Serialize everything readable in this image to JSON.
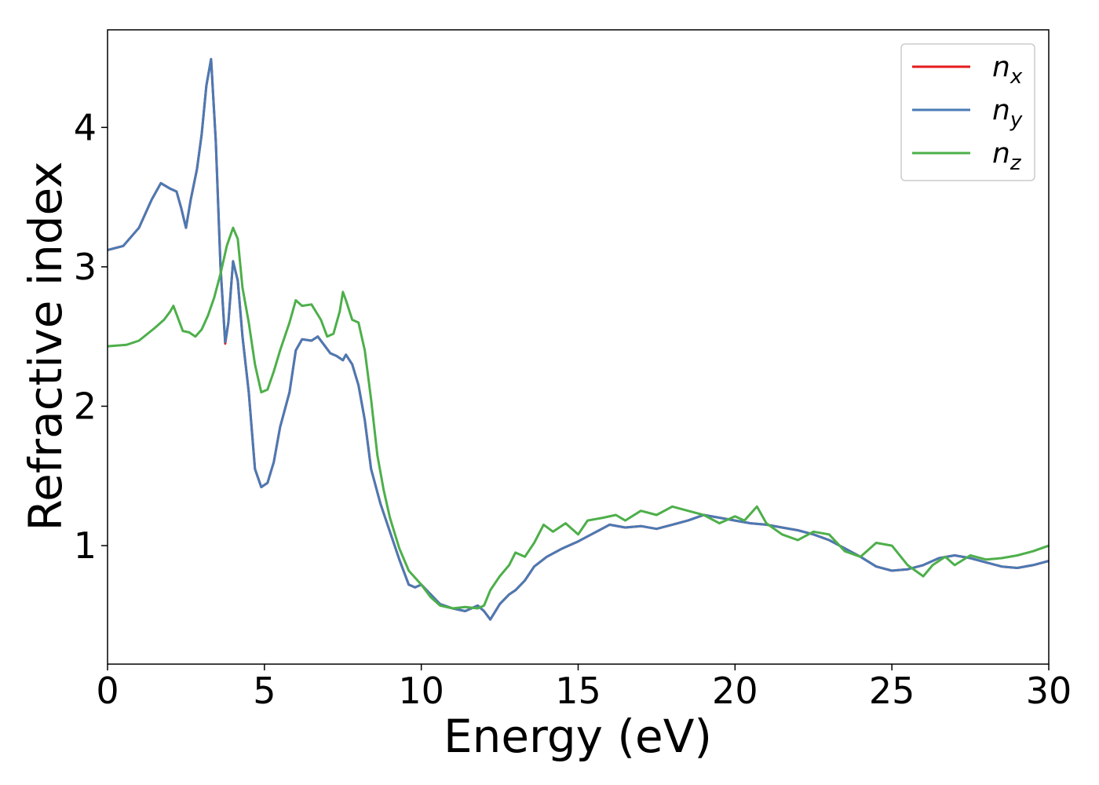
{
  "chart_data": {
    "type": "line",
    "title": "",
    "xlabel": "Energy (eV)",
    "ylabel": "Refractive index",
    "xlim": [
      0,
      30
    ],
    "ylim": [
      0.15,
      4.7
    ],
    "xticks": [
      0,
      5,
      10,
      15,
      20,
      25,
      30
    ],
    "yticks": [
      1,
      2,
      3,
      4
    ],
    "grid": false,
    "legend_position": "top-right",
    "series": [
      {
        "name": "n_x",
        "label_main": "n",
        "label_sub": "x",
        "color": "#e41a1c",
        "points": [
          [
            0,
            3.12
          ],
          [
            0.5,
            3.15
          ],
          [
            1.0,
            3.28
          ],
          [
            1.4,
            3.48
          ],
          [
            1.7,
            3.6
          ],
          [
            2.0,
            3.56
          ],
          [
            2.2,
            3.54
          ],
          [
            2.35,
            3.42
          ],
          [
            2.5,
            3.28
          ],
          [
            2.65,
            3.48
          ],
          [
            2.85,
            3.7
          ],
          [
            3.0,
            3.95
          ],
          [
            3.15,
            4.3
          ],
          [
            3.3,
            4.49
          ],
          [
            3.45,
            3.9
          ],
          [
            3.6,
            3.0
          ],
          [
            3.75,
            2.45
          ],
          [
            3.85,
            2.6
          ],
          [
            4.0,
            3.04
          ],
          [
            4.15,
            2.9
          ],
          [
            4.3,
            2.5
          ],
          [
            4.5,
            2.1
          ],
          [
            4.7,
            1.55
          ],
          [
            4.9,
            1.42
          ],
          [
            5.1,
            1.45
          ],
          [
            5.3,
            1.6
          ],
          [
            5.5,
            1.85
          ],
          [
            5.8,
            2.1
          ],
          [
            6.0,
            2.4
          ],
          [
            6.2,
            2.48
          ],
          [
            6.5,
            2.47
          ],
          [
            6.7,
            2.5
          ],
          [
            6.9,
            2.44
          ],
          [
            7.1,
            2.38
          ],
          [
            7.3,
            2.36
          ],
          [
            7.5,
            2.33
          ],
          [
            7.6,
            2.37
          ],
          [
            7.8,
            2.3
          ],
          [
            8.0,
            2.15
          ],
          [
            8.2,
            1.9
          ],
          [
            8.4,
            1.55
          ],
          [
            8.7,
            1.3
          ],
          [
            9.0,
            1.1
          ],
          [
            9.3,
            0.9
          ],
          [
            9.6,
            0.72
          ],
          [
            9.8,
            0.7
          ],
          [
            10.0,
            0.72
          ],
          [
            10.3,
            0.65
          ],
          [
            10.6,
            0.58
          ],
          [
            11.0,
            0.55
          ],
          [
            11.4,
            0.53
          ],
          [
            11.8,
            0.57
          ],
          [
            12.0,
            0.53
          ],
          [
            12.2,
            0.47
          ],
          [
            12.5,
            0.58
          ],
          [
            12.8,
            0.65
          ],
          [
            13.0,
            0.68
          ],
          [
            13.3,
            0.75
          ],
          [
            13.6,
            0.85
          ],
          [
            14.0,
            0.92
          ],
          [
            14.5,
            0.98
          ],
          [
            15.0,
            1.03
          ],
          [
            15.5,
            1.09
          ],
          [
            16.0,
            1.15
          ],
          [
            16.5,
            1.13
          ],
          [
            17.0,
            1.14
          ],
          [
            17.5,
            1.12
          ],
          [
            18.0,
            1.15
          ],
          [
            18.5,
            1.18
          ],
          [
            19.0,
            1.22
          ],
          [
            19.5,
            1.2
          ],
          [
            20.0,
            1.18
          ],
          [
            20.5,
            1.16
          ],
          [
            21.0,
            1.15
          ],
          [
            21.5,
            1.13
          ],
          [
            22.0,
            1.11
          ],
          [
            22.5,
            1.08
          ],
          [
            23.0,
            1.04
          ],
          [
            23.5,
            0.98
          ],
          [
            24.0,
            0.92
          ],
          [
            24.5,
            0.85
          ],
          [
            25.0,
            0.82
          ],
          [
            25.5,
            0.83
          ],
          [
            26.0,
            0.86
          ],
          [
            26.5,
            0.91
          ],
          [
            27.0,
            0.93
          ],
          [
            27.5,
            0.91
          ],
          [
            28.0,
            0.88
          ],
          [
            28.5,
            0.85
          ],
          [
            29.0,
            0.84
          ],
          [
            29.5,
            0.86
          ],
          [
            30.0,
            0.89
          ]
        ]
      },
      {
        "name": "n_y",
        "label_main": "n",
        "label_sub": "y",
        "color": "#4a7ab4",
        "points": [
          [
            0,
            3.12
          ],
          [
            0.5,
            3.15
          ],
          [
            1.0,
            3.28
          ],
          [
            1.4,
            3.48
          ],
          [
            1.7,
            3.6
          ],
          [
            2.0,
            3.56
          ],
          [
            2.2,
            3.54
          ],
          [
            2.35,
            3.42
          ],
          [
            2.5,
            3.28
          ],
          [
            2.65,
            3.48
          ],
          [
            2.85,
            3.7
          ],
          [
            3.0,
            3.95
          ],
          [
            3.15,
            4.3
          ],
          [
            3.3,
            4.49
          ],
          [
            3.45,
            3.9
          ],
          [
            3.6,
            3.0
          ],
          [
            3.75,
            2.46
          ],
          [
            3.85,
            2.6
          ],
          [
            4.0,
            3.04
          ],
          [
            4.15,
            2.9
          ],
          [
            4.3,
            2.5
          ],
          [
            4.5,
            2.1
          ],
          [
            4.7,
            1.55
          ],
          [
            4.9,
            1.42
          ],
          [
            5.1,
            1.45
          ],
          [
            5.3,
            1.6
          ],
          [
            5.5,
            1.85
          ],
          [
            5.8,
            2.1
          ],
          [
            6.0,
            2.4
          ],
          [
            6.2,
            2.48
          ],
          [
            6.5,
            2.47
          ],
          [
            6.7,
            2.5
          ],
          [
            6.9,
            2.44
          ],
          [
            7.1,
            2.38
          ],
          [
            7.3,
            2.36
          ],
          [
            7.5,
            2.33
          ],
          [
            7.6,
            2.37
          ],
          [
            7.8,
            2.3
          ],
          [
            8.0,
            2.15
          ],
          [
            8.2,
            1.9
          ],
          [
            8.4,
            1.55
          ],
          [
            8.7,
            1.3
          ],
          [
            9.0,
            1.1
          ],
          [
            9.3,
            0.9
          ],
          [
            9.6,
            0.72
          ],
          [
            9.8,
            0.7
          ],
          [
            10.0,
            0.72
          ],
          [
            10.3,
            0.65
          ],
          [
            10.6,
            0.58
          ],
          [
            11.0,
            0.55
          ],
          [
            11.4,
            0.53
          ],
          [
            11.8,
            0.57
          ],
          [
            12.0,
            0.53
          ],
          [
            12.2,
            0.47
          ],
          [
            12.5,
            0.58
          ],
          [
            12.8,
            0.65
          ],
          [
            13.0,
            0.68
          ],
          [
            13.3,
            0.75
          ],
          [
            13.6,
            0.85
          ],
          [
            14.0,
            0.92
          ],
          [
            14.5,
            0.98
          ],
          [
            15.0,
            1.03
          ],
          [
            15.5,
            1.09
          ],
          [
            16.0,
            1.15
          ],
          [
            16.5,
            1.13
          ],
          [
            17.0,
            1.14
          ],
          [
            17.5,
            1.12
          ],
          [
            18.0,
            1.15
          ],
          [
            18.5,
            1.18
          ],
          [
            19.0,
            1.22
          ],
          [
            19.5,
            1.2
          ],
          [
            20.0,
            1.18
          ],
          [
            20.5,
            1.16
          ],
          [
            21.0,
            1.15
          ],
          [
            21.5,
            1.13
          ],
          [
            22.0,
            1.11
          ],
          [
            22.5,
            1.08
          ],
          [
            23.0,
            1.04
          ],
          [
            23.5,
            0.98
          ],
          [
            24.0,
            0.92
          ],
          [
            24.5,
            0.85
          ],
          [
            25.0,
            0.82
          ],
          [
            25.5,
            0.83
          ],
          [
            26.0,
            0.86
          ],
          [
            26.5,
            0.91
          ],
          [
            27.0,
            0.93
          ],
          [
            27.5,
            0.91
          ],
          [
            28.0,
            0.88
          ],
          [
            28.5,
            0.85
          ],
          [
            29.0,
            0.84
          ],
          [
            29.5,
            0.86
          ],
          [
            30.0,
            0.89
          ]
        ]
      },
      {
        "name": "n_z",
        "label_main": "n",
        "label_sub": "z",
        "color": "#4daf4a",
        "points": [
          [
            0,
            2.43
          ],
          [
            0.6,
            2.44
          ],
          [
            1.0,
            2.47
          ],
          [
            1.5,
            2.56
          ],
          [
            1.8,
            2.62
          ],
          [
            2.0,
            2.68
          ],
          [
            2.1,
            2.72
          ],
          [
            2.25,
            2.63
          ],
          [
            2.4,
            2.54
          ],
          [
            2.6,
            2.53
          ],
          [
            2.8,
            2.5
          ],
          [
            3.0,
            2.55
          ],
          [
            3.2,
            2.65
          ],
          [
            3.4,
            2.78
          ],
          [
            3.6,
            2.95
          ],
          [
            3.8,
            3.15
          ],
          [
            4.0,
            3.28
          ],
          [
            4.15,
            3.2
          ],
          [
            4.3,
            2.85
          ],
          [
            4.5,
            2.6
          ],
          [
            4.7,
            2.3
          ],
          [
            4.9,
            2.1
          ],
          [
            5.1,
            2.12
          ],
          [
            5.3,
            2.25
          ],
          [
            5.5,
            2.4
          ],
          [
            5.8,
            2.6
          ],
          [
            6.0,
            2.76
          ],
          [
            6.2,
            2.72
          ],
          [
            6.5,
            2.73
          ],
          [
            6.8,
            2.62
          ],
          [
            7.0,
            2.5
          ],
          [
            7.2,
            2.52
          ],
          [
            7.4,
            2.68
          ],
          [
            7.5,
            2.82
          ],
          [
            7.6,
            2.76
          ],
          [
            7.8,
            2.62
          ],
          [
            8.0,
            2.6
          ],
          [
            8.2,
            2.4
          ],
          [
            8.4,
            2.05
          ],
          [
            8.6,
            1.65
          ],
          [
            8.8,
            1.4
          ],
          [
            9.0,
            1.2
          ],
          [
            9.3,
            0.98
          ],
          [
            9.6,
            0.82
          ],
          [
            10.0,
            0.72
          ],
          [
            10.3,
            0.63
          ],
          [
            10.6,
            0.57
          ],
          [
            11.0,
            0.55
          ],
          [
            11.4,
            0.56
          ],
          [
            11.8,
            0.55
          ],
          [
            12.0,
            0.57
          ],
          [
            12.2,
            0.68
          ],
          [
            12.5,
            0.78
          ],
          [
            12.8,
            0.86
          ],
          [
            13.0,
            0.95
          ],
          [
            13.3,
            0.92
          ],
          [
            13.6,
            1.02
          ],
          [
            13.9,
            1.15
          ],
          [
            14.2,
            1.1
          ],
          [
            14.6,
            1.16
          ],
          [
            15.0,
            1.08
          ],
          [
            15.3,
            1.18
          ],
          [
            15.8,
            1.2
          ],
          [
            16.2,
            1.22
          ],
          [
            16.5,
            1.18
          ],
          [
            17.0,
            1.25
          ],
          [
            17.5,
            1.22
          ],
          [
            18.0,
            1.28
          ],
          [
            18.5,
            1.25
          ],
          [
            19.0,
            1.22
          ],
          [
            19.5,
            1.16
          ],
          [
            20.0,
            1.21
          ],
          [
            20.3,
            1.18
          ],
          [
            20.7,
            1.28
          ],
          [
            21.0,
            1.16
          ],
          [
            21.5,
            1.08
          ],
          [
            22.0,
            1.04
          ],
          [
            22.5,
            1.1
          ],
          [
            23.0,
            1.08
          ],
          [
            23.5,
            0.96
          ],
          [
            24.0,
            0.92
          ],
          [
            24.5,
            1.02
          ],
          [
            25.0,
            1.0
          ],
          [
            25.5,
            0.86
          ],
          [
            26.0,
            0.78
          ],
          [
            26.3,
            0.86
          ],
          [
            26.7,
            0.92
          ],
          [
            27.0,
            0.86
          ],
          [
            27.5,
            0.93
          ],
          [
            28.0,
            0.9
          ],
          [
            28.5,
            0.91
          ],
          [
            29.0,
            0.93
          ],
          [
            29.5,
            0.96
          ],
          [
            30.0,
            1.0
          ]
        ]
      }
    ]
  }
}
